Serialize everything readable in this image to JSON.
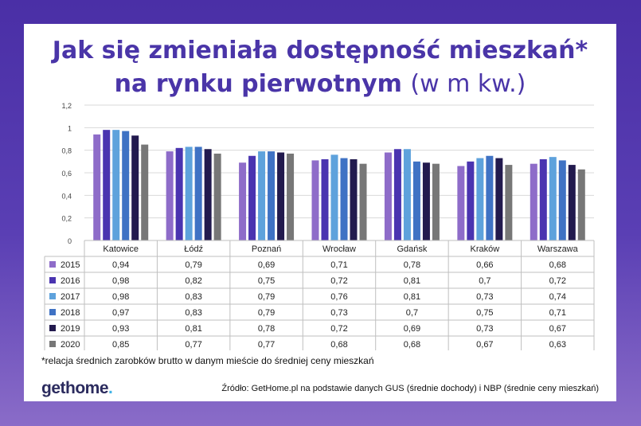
{
  "title_line1": "Jak się zmieniała dostępność mieszkań*",
  "title_line2_bold": "na rynku pierwotnym",
  "title_line2_light": "(w m kw.)",
  "footnote": "*relacja średnich zarobków brutto w danym mieście do średniej ceny mieszkań",
  "logo": {
    "main": "gethome",
    "dot": "."
  },
  "source": "Źródło: GetHome.pl na podstawie danych GUS (średnie dochody) i NBP (średnie ceny mieszkań)",
  "chart_data": {
    "type": "bar",
    "categories": [
      "Katowice",
      "Łódź",
      "Poznań",
      "Wrocław",
      "Gdańsk",
      "Kraków",
      "Warszawa"
    ],
    "yticks": [
      "0",
      "0,2",
      "0,4",
      "0,6",
      "0,8",
      "1",
      "1,2"
    ],
    "ylim": [
      0,
      1.2
    ],
    "grid": true,
    "series": [
      {
        "name": "2015",
        "color": "#8e6cc9",
        "values": [
          0.94,
          0.79,
          0.69,
          0.71,
          0.78,
          0.66,
          0.68
        ],
        "labels": [
          "0,94",
          "0,79",
          "0,69",
          "0,71",
          "0,78",
          "0,66",
          "0,68"
        ]
      },
      {
        "name": "2016",
        "color": "#4a34b0",
        "values": [
          0.98,
          0.82,
          0.75,
          0.72,
          0.81,
          0.7,
          0.72
        ],
        "labels": [
          "0,98",
          "0,82",
          "0,75",
          "0,72",
          "0,81",
          "0,7",
          "0,72"
        ]
      },
      {
        "name": "2017",
        "color": "#5ea2dc",
        "values": [
          0.98,
          0.83,
          0.79,
          0.76,
          0.81,
          0.73,
          0.74
        ],
        "labels": [
          "0,98",
          "0,83",
          "0,79",
          "0,76",
          "0,81",
          "0,73",
          "0,74"
        ]
      },
      {
        "name": "2018",
        "color": "#3f72c4",
        "values": [
          0.97,
          0.83,
          0.79,
          0.73,
          0.7,
          0.75,
          0.71
        ],
        "labels": [
          "0,97",
          "0,83",
          "0,79",
          "0,73",
          "0,7",
          "0,75",
          "0,71"
        ]
      },
      {
        "name": "2019",
        "color": "#221a4e",
        "values": [
          0.93,
          0.81,
          0.78,
          0.72,
          0.69,
          0.73,
          0.67
        ],
        "labels": [
          "0,93",
          "0,81",
          "0,78",
          "0,72",
          "0,69",
          "0,73",
          "0,67"
        ]
      },
      {
        "name": "2020",
        "color": "#777777",
        "values": [
          0.85,
          0.77,
          0.77,
          0.68,
          0.68,
          0.67,
          0.63
        ],
        "labels": [
          "0,85",
          "0,77",
          "0,77",
          "0,68",
          "0,68",
          "0,67",
          "0,63"
        ]
      }
    ]
  }
}
